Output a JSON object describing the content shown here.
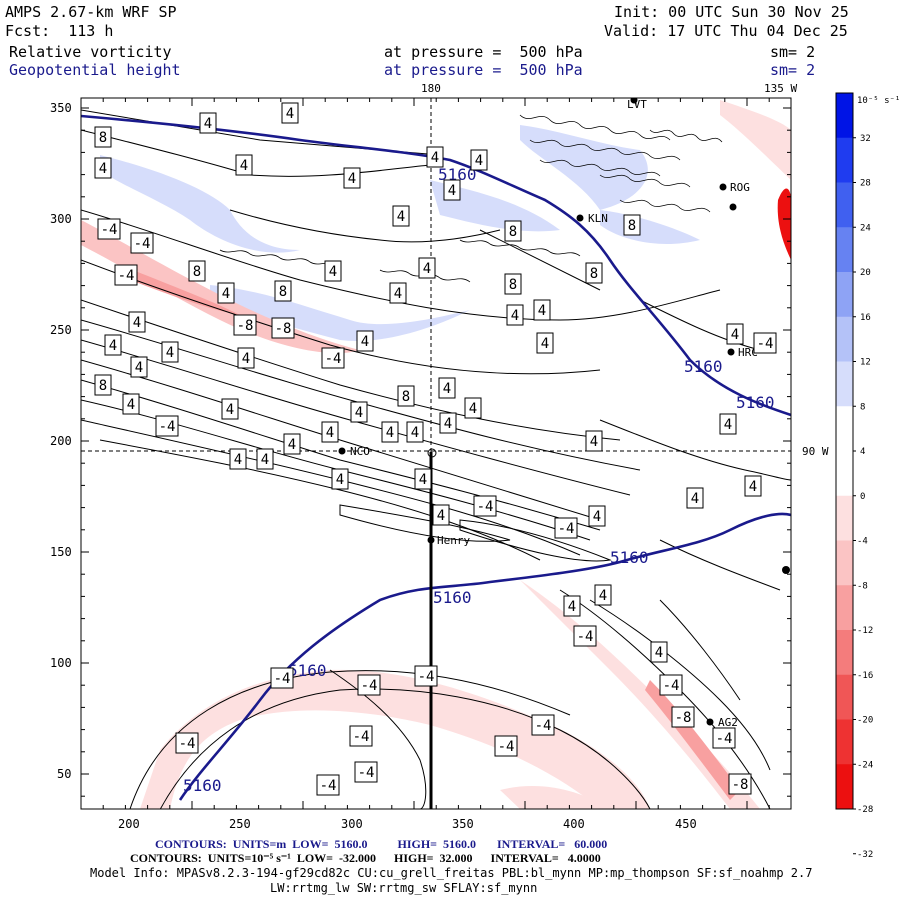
{
  "header": {
    "model": "AMPS 2.67-km WRF SP",
    "forecast": "Fcst:  113 h",
    "init": "Init: 00 UTC Sun 30 Nov 25",
    "valid": "Valid: 17 UTC Thu 04 Dec 25",
    "field1": "Relative vorticity",
    "field2": "Geopotential height",
    "pressure1": "at pressure =  500 hPa",
    "pressure2": "at pressure =  500 hPa",
    "sm1": "sm= 2",
    "sm2": "sm= 2"
  },
  "map": {
    "lon_180": "180",
    "lon_135w": "135 W",
    "lon_90w": "90 W",
    "x_ticks": [
      "200",
      "250",
      "300",
      "350",
      "400",
      "450"
    ],
    "y_ticks": [
      "350",
      "300",
      "250",
      "200",
      "150",
      "100",
      "50"
    ],
    "stations": [
      "LVT",
      "ROG",
      "KLN",
      "HRC",
      "NCO",
      "Henry",
      "AG2"
    ],
    "height_label": "5160",
    "vort_labels": [
      "4",
      "8",
      "-4",
      "-8"
    ]
  },
  "colorbar": {
    "unit": "10⁻⁵ s⁻¹",
    "ticks": [
      "32",
      "28",
      "24",
      "20",
      "16",
      "12",
      "8",
      "4",
      "0",
      "-4",
      "-8",
      "-12",
      "-16",
      "-20",
      "-24",
      "-28",
      "-32"
    ],
    "colors": [
      "#0014e6",
      "#1f3cf0",
      "#4060f0",
      "#6682f2",
      "#8ea3f5",
      "#b4c2f8",
      "#d6ddfb",
      "#ffffff",
      "#ffffff",
      "#fde0e0",
      "#fbc4c4",
      "#f8a0a0",
      "#f47c7c",
      "#f05656",
      "#ee3232",
      "#ec1010"
    ]
  },
  "footer": {
    "line1": "CONTOURS:  UNITS=m  LOW=  5160.0          HIGH=  5160.0       INTERVAL=   60.000",
    "line2": "CONTOURS:  UNITS=10⁻⁵ s⁻¹  LOW=  -32.000      HIGH=  32.000      INTERVAL=   4.0000",
    "line3": "Model Info: MPASv8.2.3-194-gf29cd82c CU:cu_grell_freitas PBL:bl_mynn MP:mp_thompson SF:sf_noahmp 2.7",
    "line4": "LW:rrtmg_lw SW:rrtmg_sw SFLAY:sf_mynn"
  }
}
